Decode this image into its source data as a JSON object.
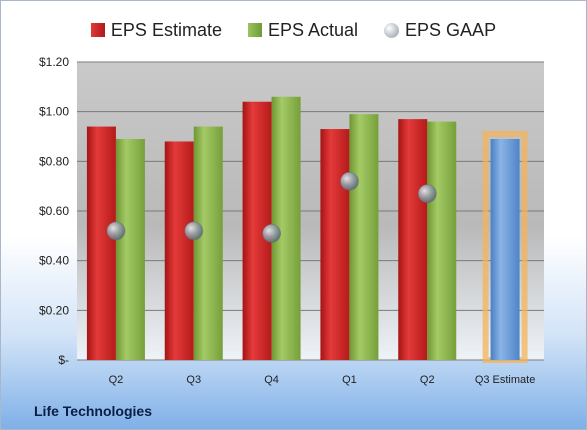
{
  "company": "Life Technologies",
  "chart_data": {
    "type": "bar",
    "categories": [
      "Q2",
      "Q3",
      "Q4",
      "Q1",
      "Q2",
      "Q3 Estimate"
    ],
    "series": [
      {
        "name": "EPS Estimate",
        "values": [
          0.94,
          0.88,
          1.04,
          0.93,
          0.97,
          null
        ],
        "color": "#c01f1f"
      },
      {
        "name": "EPS Actual",
        "values": [
          0.89,
          0.94,
          1.06,
          0.99,
          0.96,
          null
        ],
        "color": "#86ad4a"
      },
      {
        "name": "EPS GAAP",
        "values": [
          0.52,
          0.52,
          0.51,
          0.72,
          0.67,
          null
        ],
        "color": "#8e98a3"
      }
    ],
    "estimate_bar": {
      "category": "Q3 Estimate",
      "value": 0.89,
      "color": "#5b8fd0",
      "highlight": "#f4b35a"
    },
    "yticks": [
      "$-",
      "$0.20",
      "$0.40",
      "$0.60",
      "$0.80",
      "$1.00",
      "$1.20"
    ],
    "ylim": [
      0,
      1.2
    ],
    "legend_position": "top",
    "grid": true
  }
}
